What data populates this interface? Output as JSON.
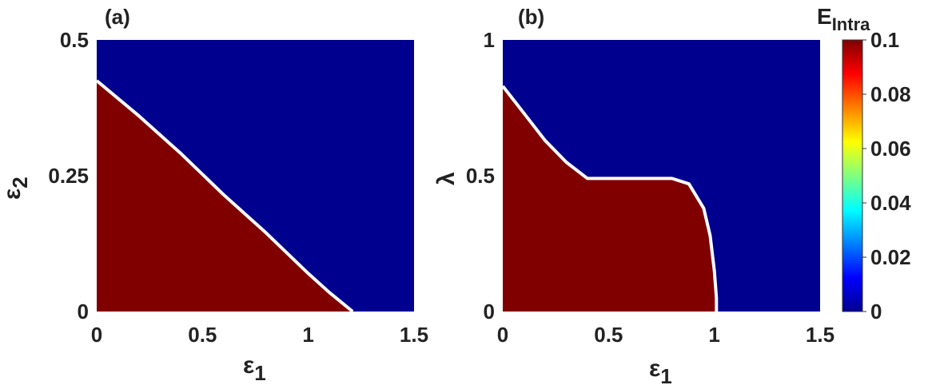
{
  "colors": {
    "inside": "#800000",
    "outside": "#00008f",
    "boundary": "#ffffff",
    "colormap": [
      "#00008f",
      "#0000ff",
      "#0080ff",
      "#00ffff",
      "#80ff80",
      "#ffff00",
      "#ff8000",
      "#ff0000",
      "#800000"
    ]
  },
  "chart_data": [
    {
      "type": "heatmap",
      "panel_label": "(a)",
      "xlabel": "ε",
      "xlabel_sub": "1",
      "ylabel": "ε",
      "ylabel_sub": "2",
      "xlim": [
        0,
        1.5
      ],
      "ylim": [
        0,
        0.5
      ],
      "xticks": [
        0,
        0.5,
        1,
        1.5
      ],
      "xtick_labels": [
        "0",
        "0.5",
        "1",
        "1.5"
      ],
      "yticks": [
        0,
        0.25,
        0.5
      ],
      "ytick_labels": [
        "0",
        "0.25",
        "0.5"
      ],
      "region_value": 0.1,
      "background_value": 0,
      "boundary": [
        [
          0,
          0.425
        ],
        [
          0.2,
          0.36
        ],
        [
          0.4,
          0.29
        ],
        [
          0.6,
          0.215
        ],
        [
          0.8,
          0.145
        ],
        [
          1.0,
          0.07
        ],
        [
          1.1,
          0.035
        ],
        [
          1.21,
          0
        ]
      ]
    },
    {
      "type": "heatmap",
      "panel_label": "(b)",
      "xlabel": "ε",
      "xlabel_sub": "1",
      "ylabel": "λ",
      "xlim": [
        0,
        1.5
      ],
      "ylim": [
        0,
        1
      ],
      "xticks": [
        0,
        0.5,
        1,
        1.5
      ],
      "xtick_labels": [
        "0",
        "0.5",
        "1",
        "1.5"
      ],
      "yticks": [
        0,
        0.5,
        1
      ],
      "ytick_labels": [
        "0",
        "0.5",
        "1"
      ],
      "region_value": 0.1,
      "background_value": 0,
      "boundary": [
        [
          0,
          0.83
        ],
        [
          0.1,
          0.73
        ],
        [
          0.2,
          0.63
        ],
        [
          0.3,
          0.55
        ],
        [
          0.4,
          0.49
        ],
        [
          0.5,
          0.49
        ],
        [
          0.6,
          0.49
        ],
        [
          0.7,
          0.49
        ],
        [
          0.8,
          0.49
        ],
        [
          0.88,
          0.47
        ],
        [
          0.95,
          0.38
        ],
        [
          0.98,
          0.28
        ],
        [
          1.0,
          0.15
        ],
        [
          1.01,
          0.05
        ],
        [
          1.01,
          0
        ]
      ]
    }
  ],
  "colorbar": {
    "label": "E",
    "label_sub": "Intra",
    "min": 0,
    "max": 0.1,
    "ticks": [
      0,
      0.02,
      0.04,
      0.06,
      0.08,
      0.1
    ],
    "tick_labels": [
      "0",
      "0.02",
      "0.04",
      "0.06",
      "0.08",
      "0.1"
    ]
  }
}
